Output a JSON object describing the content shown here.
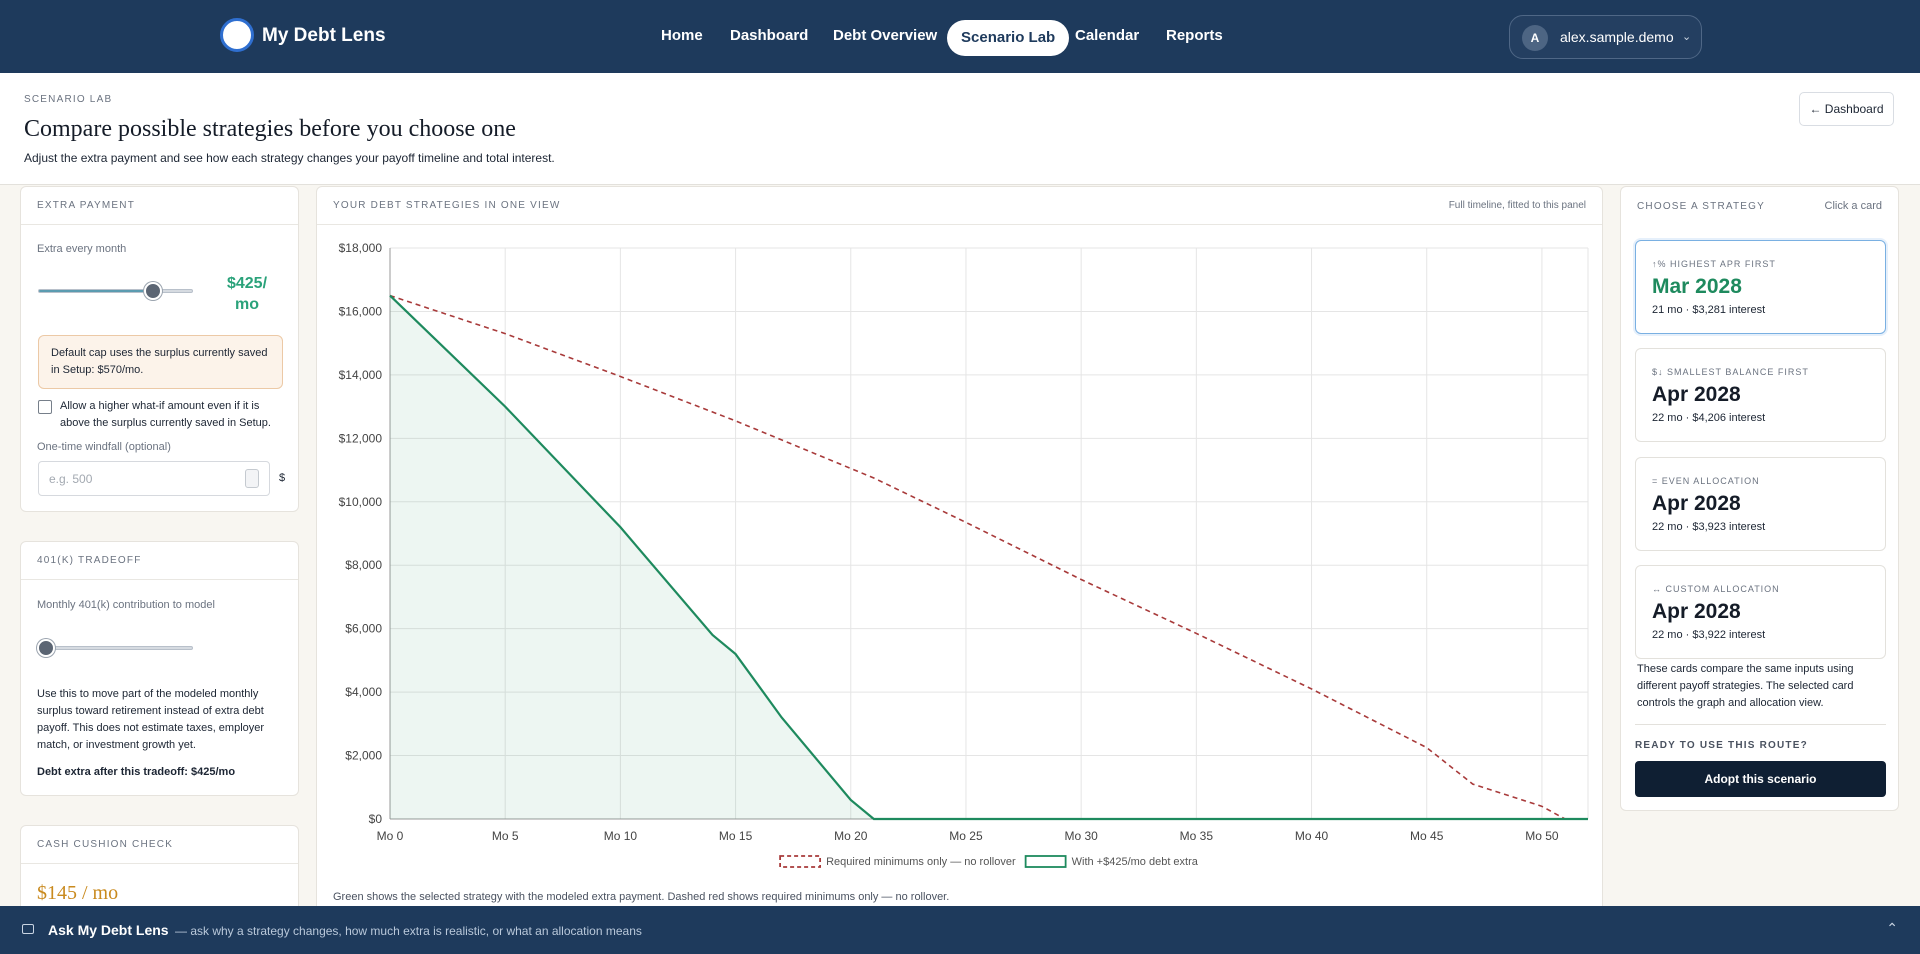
{
  "nav": {
    "brand": "My Debt Lens",
    "items": [
      "Home",
      "Dashboard",
      "Debt Overview",
      "Scenario Lab",
      "Calendar",
      "Reports"
    ],
    "active": 3,
    "user": {
      "avatar": "A",
      "name": "alex.sample.demo"
    }
  },
  "header": {
    "eyebrow": "SCENARIO LAB",
    "title": "Compare possible strategies before you choose one",
    "subtitle": "Adjust the extra payment and see how each strategy changes your payoff timeline and total interest.",
    "back_button": "← Dashboard"
  },
  "extra_payment": {
    "heading": "EXTRA PAYMENT",
    "label": "Extra every month",
    "value_label": "$425/ mo",
    "note": "Default cap uses the surplus currently saved in Setup: $570/mo.",
    "checkbox_label": "Allow a higher what-if amount even if it is above the surplus currently saved in Setup.",
    "windfall_label": "One-time windfall (optional)",
    "windfall_placeholder": "e.g. 500",
    "unit": "$"
  },
  "tradeoff": {
    "heading": "401(K) TRADEOFF",
    "label": "Monthly 401(k) contribution to model",
    "text": "Use this to move part of the modeled monthly surplus toward retirement instead of extra debt payoff. This does not estimate taxes, employer match, or investment growth yet.",
    "result": "Debt extra after this tradeoff: $425/mo"
  },
  "cash_cushion": {
    "heading": "CASH CUSHION CHECK",
    "value_label": "$145 / mo"
  },
  "chart_panel": {
    "heading": "YOUR DEBT STRATEGIES IN ONE VIEW",
    "note": "Full timeline, fitted to this panel",
    "caption": "Green shows the selected strategy with the modeled extra payment. Dashed red shows required minimums only — no rollover."
  },
  "chart_data": {
    "type": "line",
    "x": [
      0,
      5,
      10,
      14,
      15,
      17,
      20,
      21,
      25,
      30,
      35,
      40,
      45,
      47,
      50,
      51,
      52
    ],
    "xlim": [
      0,
      52
    ],
    "xticks": [
      {
        "value": 0,
        "label": "Mo 0"
      },
      {
        "value": 5,
        "label": "Mo 5"
      },
      {
        "value": 10,
        "label": "Mo 10"
      },
      {
        "value": 15,
        "label": "Mo 15"
      },
      {
        "value": 20,
        "label": "Mo 20"
      },
      {
        "value": 25,
        "label": "Mo 25"
      },
      {
        "value": 30,
        "label": "Mo 30"
      },
      {
        "value": 35,
        "label": "Mo 35"
      },
      {
        "value": 40,
        "label": "Mo 40"
      },
      {
        "value": 45,
        "label": "Mo 45"
      },
      {
        "value": 50,
        "label": "Mo 50"
      }
    ],
    "ylim": [
      0,
      18000
    ],
    "yticks": [
      {
        "value": 0,
        "label": "$0"
      },
      {
        "value": 2000,
        "label": "$2,000"
      },
      {
        "value": 4000,
        "label": "$4,000"
      },
      {
        "value": 6000,
        "label": "$6,000"
      },
      {
        "value": 8000,
        "label": "$8,000"
      },
      {
        "value": 10000,
        "label": "$10,000"
      },
      {
        "value": 12000,
        "label": "$12,000"
      },
      {
        "value": 14000,
        "label": "$14,000"
      },
      {
        "value": 16000,
        "label": "$16,000"
      },
      {
        "value": 18000,
        "label": "$18,000"
      }
    ],
    "grid": true,
    "series": [
      {
        "name": "Required minimums only — no rollover",
        "color": "#a83a3a",
        "dash": true,
        "values": [
          16500,
          15300,
          13950,
          12830,
          12550,
          11950,
          11050,
          10750,
          9350,
          7550,
          5850,
          4100,
          2250,
          1100,
          400,
          0,
          0
        ]
      },
      {
        "name": "With +$425/mo debt extra",
        "color": "#1e8a5e",
        "fill": true,
        "values": [
          16500,
          13000,
          9200,
          5800,
          5200,
          3200,
          600,
          0,
          0,
          0,
          0,
          0,
          0,
          0,
          0,
          0,
          0
        ]
      }
    ]
  },
  "strategies": {
    "heading": "CHOOSE A STRATEGY",
    "hint": "Click a card",
    "selected": 0,
    "cards": [
      {
        "label": "↑% HIGHEST APR FIRST",
        "date": "Mar 2028",
        "meta": "21 mo · $3,281 interest"
      },
      {
        "label": "$↓ SMALLEST BALANCE FIRST",
        "date": "Apr 2028",
        "meta": "22 mo · $4,206 interest"
      },
      {
        "label": "= EVEN ALLOCATION",
        "date": "Apr 2028",
        "meta": "22 mo · $3,923 interest"
      },
      {
        "label": "↔ CUSTOM ALLOCATION",
        "date": "Apr 2028",
        "meta": "22 mo · $3,922 interest"
      }
    ],
    "description": "These cards compare the same inputs using different payoff strategies. The selected card controls the graph and allocation view.",
    "ready_heading": "READY TO USE THIS ROUTE?",
    "button": "Adopt this scenario"
  },
  "assistant": {
    "title": "Ask My Debt Lens",
    "prompt": "— ask why a strategy changes, how much extra is realistic, or what an allocation means"
  }
}
